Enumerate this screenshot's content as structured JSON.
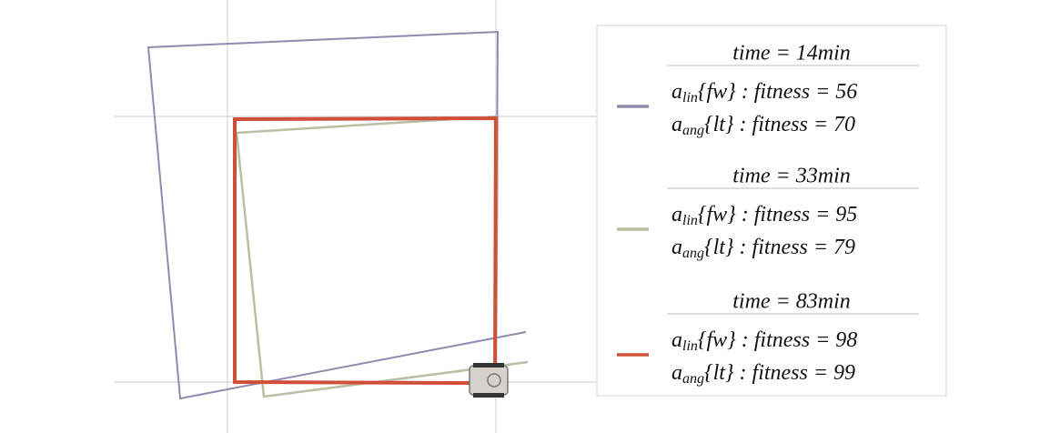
{
  "legend": {
    "entries": [
      {
        "color": "#8d8daf",
        "time": "time = 14min",
        "linear": {
          "symbol": "a",
          "subscript": "lin",
          "text": "{fw} : fitness = 56"
        },
        "angular": {
          "symbol": "a",
          "subscript": "ang",
          "text": "{lt} : fitness = 70"
        }
      },
      {
        "color": "#b7c0a2",
        "time": "time = 33min",
        "linear": {
          "symbol": "a",
          "subscript": "lin",
          "text": "{fw} : fitness = 95"
        },
        "angular": {
          "symbol": "a",
          "subscript": "ang",
          "text": "{lt} : fitness = 79"
        }
      },
      {
        "color": "#cf4f38",
        "time": "time = 83min",
        "linear": {
          "symbol": "a",
          "subscript": "lin",
          "text": "{fw} : fitness = 98"
        },
        "angular": {
          "symbol": "a",
          "subscript": "ang",
          "text": "{lt} : fitness = 99"
        }
      }
    ]
  }
}
